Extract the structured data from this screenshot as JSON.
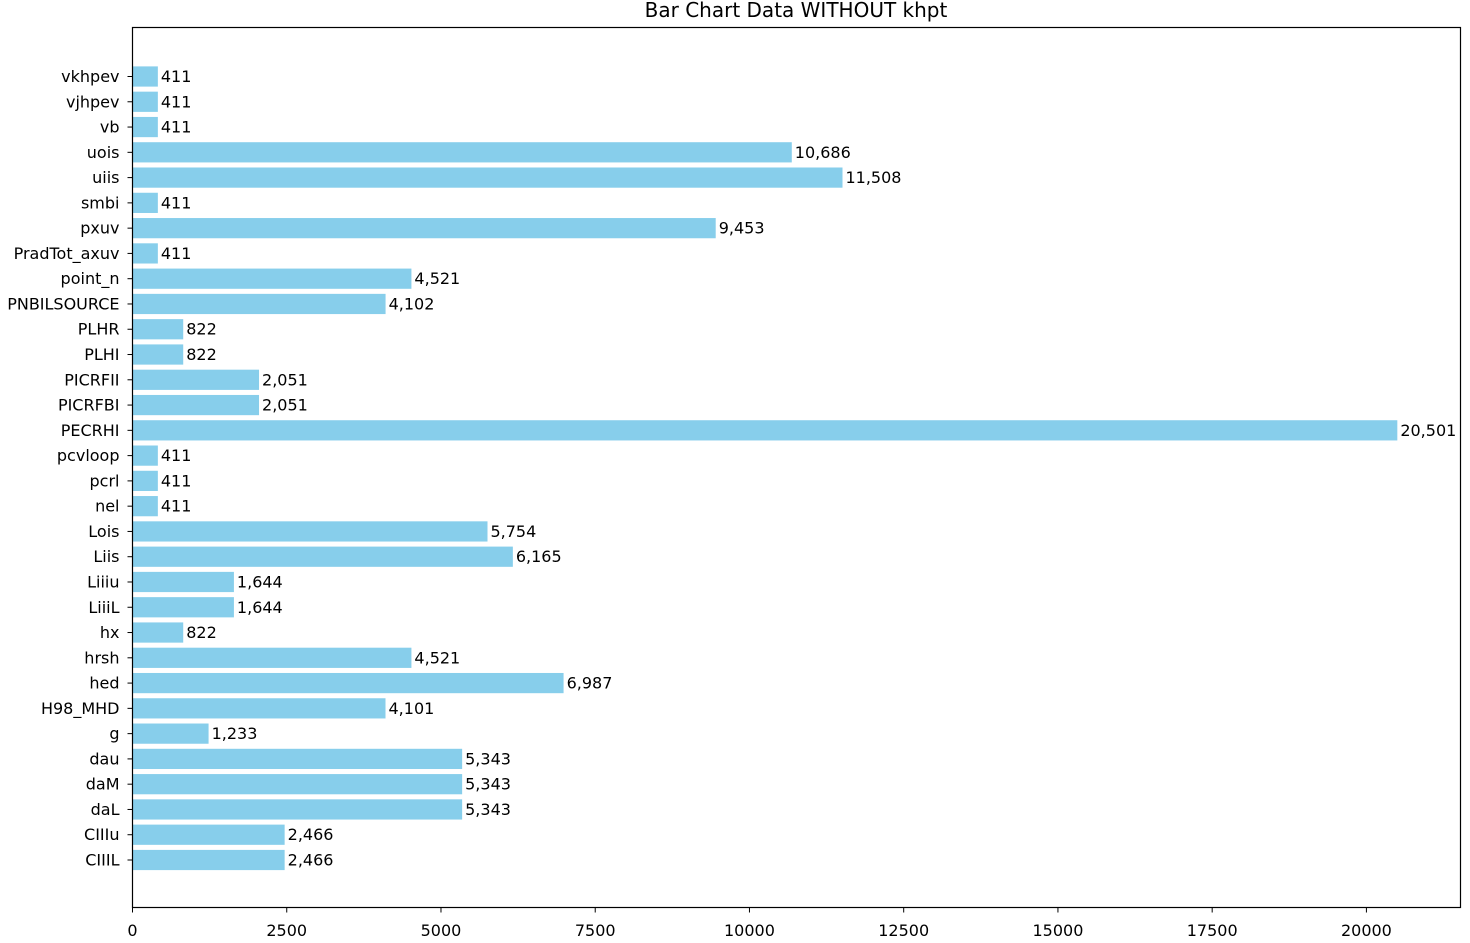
{
  "chart_data": {
    "type": "bar",
    "orientation": "horizontal",
    "title": "Bar Chart Data WITHOUT khpt",
    "xlabel": "",
    "ylabel": "",
    "xlim": [
      0,
      21525
    ],
    "xticks": [
      0,
      2500,
      5000,
      7500,
      10000,
      12500,
      15000,
      17500,
      20000
    ],
    "xtick_labels": [
      "0",
      "2500",
      "5000",
      "7500",
      "10000",
      "12500",
      "15000",
      "17500",
      "20000"
    ],
    "grid": false,
    "bar_color": "#87CEEB",
    "categories": [
      "CIIIL",
      "CIIIu",
      "daL",
      "daM",
      "dau",
      "g",
      "H98_MHD",
      "hed",
      "hrsh",
      "hx",
      "LiiiL",
      "Liiiu",
      "Liis",
      "Lois",
      "nel",
      "pcrl",
      "pcvloop",
      "PECRHI",
      "PICRFBI",
      "PICRFII",
      "PLHI",
      "PLHR",
      "PNBILSOURCE",
      "point_n",
      "PradTot_axuv",
      "pxuv",
      "smbi",
      "uiis",
      "uois",
      "vb",
      "vjhpev",
      "vkhpev"
    ],
    "values": [
      2466,
      2466,
      5343,
      5343,
      5343,
      1233,
      4101,
      6987,
      4521,
      822,
      1644,
      1644,
      6165,
      5754,
      411,
      411,
      411,
      20501,
      2051,
      2051,
      822,
      822,
      4102,
      4521,
      411,
      9453,
      411,
      11508,
      10686,
      411,
      411,
      411
    ],
    "value_labels": [
      "2,466",
      "2,466",
      "5,343",
      "5,343",
      "5,343",
      "1,233",
      "4,101",
      "6,987",
      "4,521",
      "822",
      "1,644",
      "1,644",
      "6,165",
      "5,754",
      "411",
      "411",
      "411",
      "20,501",
      "2,051",
      "2,051",
      "822",
      "822",
      "4,102",
      "4,521",
      "411",
      "9,453",
      "411",
      "11,508",
      "10,686",
      "411",
      "411",
      "411"
    ]
  }
}
